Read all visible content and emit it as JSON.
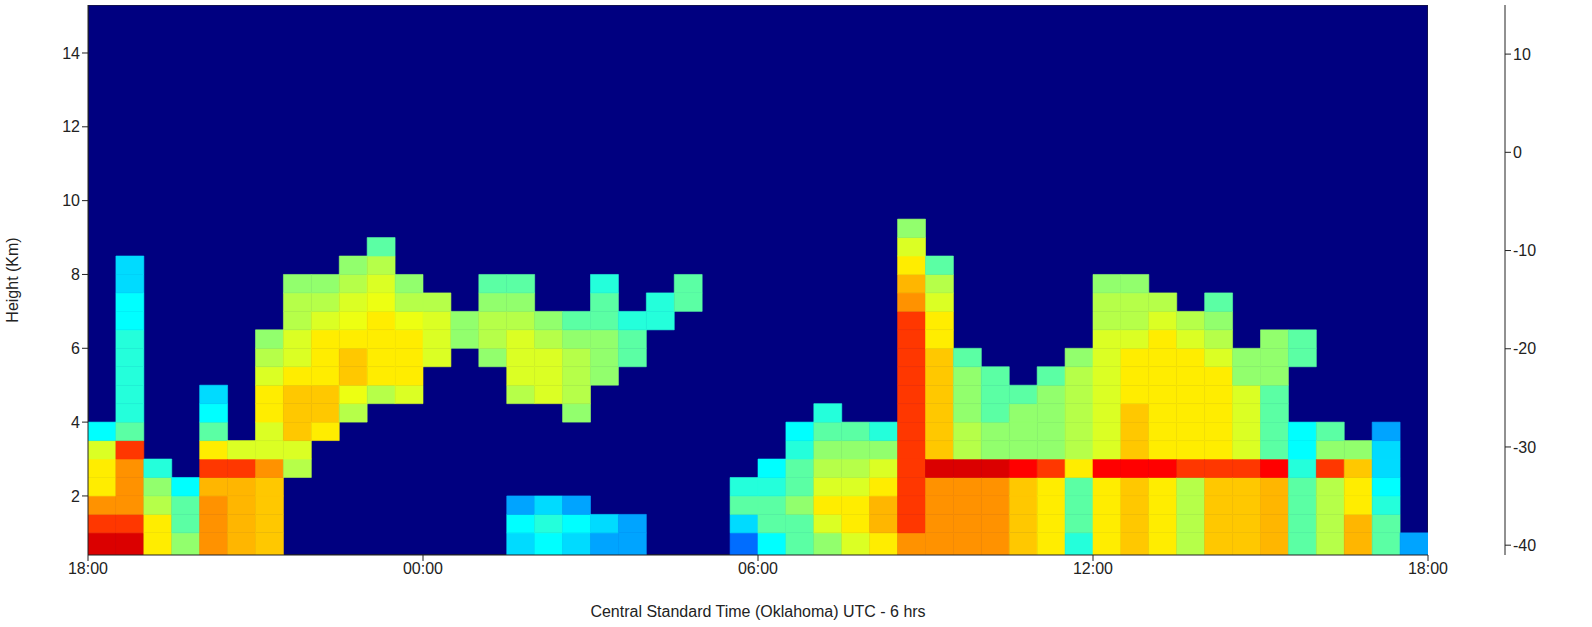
{
  "chart_data": {
    "type": "heatmap",
    "x_label": "Central Standard Time (Oklahoma)  UTC - 6 hrs",
    "y_label": "Height (Km)",
    "xlim": [
      0,
      24
    ],
    "xticks": [
      {
        "value": 0,
        "label": "18:00"
      },
      {
        "value": 6,
        "label": "00:00"
      },
      {
        "value": 12,
        "label": "06:00"
      },
      {
        "value": 18,
        "label": "12:00"
      },
      {
        "value": 24,
        "label": "18:00"
      }
    ],
    "ylim": [
      0.4,
      15.3
    ],
    "yticks": [
      2,
      4,
      6,
      8,
      10,
      12,
      14
    ],
    "heatmap": {
      "x_edges": [
        0,
        0.5,
        1,
        1.5,
        2,
        2.5,
        3,
        3.5,
        4,
        4.5,
        5,
        5.5,
        6,
        6.5,
        7,
        7.5,
        8,
        8.5,
        9,
        9.5,
        10,
        10.5,
        11,
        11.5,
        12,
        12.5,
        13,
        13.5,
        14,
        14.5,
        15,
        15.5,
        16,
        16.5,
        17,
        17.5,
        18,
        18.5,
        19,
        19.5,
        20,
        20.5,
        21,
        21.5,
        22,
        22.5,
        23,
        23.5,
        24
      ],
      "y_edges": [
        0.4,
        1,
        1.5,
        2,
        2.5,
        3,
        3.5,
        4,
        4.5,
        5,
        5.5,
        6,
        6.5,
        7,
        7.5,
        8,
        8.5,
        9,
        9.5
      ],
      "values": [
        [
          10,
          5,
          0,
          -5,
          -5,
          -8,
          -20,
          null,
          null,
          null,
          null,
          null,
          null,
          null,
          null,
          null,
          null,
          null
        ],
        [
          10,
          5,
          0,
          0,
          0,
          5,
          -15,
          -18,
          -18,
          -18,
          -18,
          -18,
          -20,
          -20,
          -22,
          -22,
          null,
          null
        ],
        [
          -5,
          -5,
          -10,
          -12,
          -18,
          null,
          null,
          null,
          null,
          null,
          null,
          null,
          null,
          null,
          null,
          null,
          null,
          null
        ],
        [
          -12,
          -15,
          -15,
          -20,
          null,
          null,
          null,
          null,
          null,
          null,
          null,
          null,
          null,
          null,
          null,
          null,
          null,
          null
        ],
        [
          0,
          0,
          0,
          -2,
          5,
          -5,
          -15,
          -20,
          -22,
          null,
          null,
          null,
          null,
          null,
          null,
          null,
          null,
          null
        ],
        [
          -2,
          -2,
          -2,
          -2,
          5,
          -8,
          null,
          null,
          null,
          null,
          null,
          null,
          null,
          null,
          null,
          null,
          null,
          null
        ],
        [
          -3,
          -3,
          -3,
          -3,
          0,
          -8,
          -8,
          -5,
          -5,
          -8,
          -10,
          -12,
          null,
          null,
          null,
          null,
          null,
          null
        ],
        [
          null,
          null,
          null,
          null,
          -10,
          -8,
          -3,
          -3,
          -3,
          -5,
          -8,
          -8,
          -10,
          -10,
          -12,
          null,
          null,
          null
        ],
        [
          null,
          null,
          null,
          null,
          null,
          null,
          -5,
          -3,
          -3,
          -5,
          -5,
          -5,
          -8,
          -10,
          -12,
          null,
          null,
          null
        ],
        [
          null,
          null,
          null,
          null,
          null,
          null,
          null,
          -10,
          -7,
          -3,
          -3,
          -5,
          -7,
          -8,
          -10,
          -12,
          null,
          null
        ],
        [
          null,
          null,
          null,
          null,
          null,
          null,
          null,
          null,
          -10,
          -5,
          -5,
          -5,
          -5,
          -7,
          -8,
          -10,
          -15,
          null
        ],
        [
          null,
          null,
          null,
          null,
          null,
          null,
          null,
          null,
          -8,
          -5,
          -5,
          -5,
          -7,
          -10,
          -12,
          null,
          null,
          null
        ],
        [
          null,
          null,
          null,
          null,
          null,
          null,
          null,
          null,
          null,
          null,
          -8,
          -8,
          -8,
          -10,
          null,
          null,
          null,
          null
        ],
        [
          null,
          null,
          null,
          null,
          null,
          null,
          null,
          null,
          null,
          null,
          null,
          -12,
          -12,
          null,
          null,
          null,
          null,
          null
        ],
        [
          null,
          null,
          null,
          null,
          null,
          null,
          null,
          null,
          null,
          null,
          -12,
          -10,
          -10,
          -12,
          -15,
          null,
          null,
          null
        ],
        [
          -22,
          -20,
          -25,
          null,
          null,
          null,
          null,
          null,
          -10,
          -8,
          -8,
          -8,
          -10,
          -12,
          -15,
          null,
          null,
          null
        ],
        [
          -20,
          -18,
          -22,
          null,
          null,
          null,
          null,
          null,
          -8,
          -8,
          -8,
          -10,
          -12,
          null,
          null,
          null,
          null,
          null
        ],
        [
          -22,
          -20,
          -25,
          null,
          null,
          null,
          null,
          -12,
          -10,
          -10,
          -10,
          -12,
          -15,
          null,
          null,
          null,
          null,
          null
        ],
        [
          -25,
          -22,
          null,
          null,
          null,
          null,
          null,
          null,
          null,
          -12,
          -12,
          -12,
          -15,
          -15,
          -18,
          null,
          null,
          null
        ],
        [
          -25,
          -25,
          null,
          null,
          null,
          null,
          null,
          null,
          null,
          null,
          -15,
          -15,
          -18,
          null,
          null,
          null,
          null,
          null
        ],
        [
          null,
          null,
          null,
          null,
          null,
          null,
          null,
          null,
          null,
          null,
          null,
          null,
          -18,
          -18,
          null,
          null,
          null,
          null
        ],
        [
          null,
          null,
          null,
          null,
          null,
          null,
          null,
          null,
          null,
          null,
          null,
          null,
          null,
          -15,
          -15,
          null,
          null,
          null
        ],
        [
          null,
          null,
          null,
          null,
          null,
          null,
          null,
          null,
          null,
          null,
          null,
          null,
          null,
          null,
          null,
          null,
          null,
          null
        ],
        [
          -28,
          -22,
          -15,
          -18,
          null,
          null,
          null,
          null,
          null,
          null,
          null,
          null,
          null,
          null,
          null,
          null,
          null,
          null
        ],
        [
          -20,
          -15,
          -15,
          -18,
          -20,
          null,
          null,
          null,
          null,
          null,
          null,
          null,
          null,
          null,
          null,
          null,
          null,
          null
        ],
        [
          -15,
          -15,
          -12,
          -15,
          -15,
          -18,
          -20,
          null,
          null,
          null,
          null,
          null,
          null,
          null,
          null,
          null,
          null,
          null
        ],
        [
          -12,
          -8,
          -5,
          -8,
          -10,
          -12,
          -15,
          -18,
          null,
          null,
          null,
          null,
          null,
          null,
          null,
          null,
          null,
          null
        ],
        [
          -8,
          -5,
          -5,
          -8,
          -10,
          -12,
          -15,
          null,
          null,
          null,
          null,
          null,
          null,
          null,
          null,
          null,
          null,
          null
        ],
        [
          -5,
          -2,
          -2,
          -5,
          -8,
          -12,
          -18,
          null,
          null,
          null,
          null,
          null,
          null,
          null,
          null,
          null,
          null,
          null
        ],
        [
          0,
          5,
          5,
          5,
          5,
          5,
          5,
          5,
          5,
          5,
          5,
          5,
          5,
          0,
          -2,
          -5,
          -8,
          -12
        ],
        [
          0,
          0,
          0,
          0,
          10,
          -3,
          -3,
          -3,
          -3,
          -3,
          -3,
          -5,
          -5,
          -8,
          -10,
          -15,
          null,
          null
        ],
        [
          0,
          0,
          0,
          0,
          10,
          -10,
          -10,
          -12,
          -12,
          -12,
          -15,
          null,
          null,
          null,
          null,
          null,
          null,
          null
        ],
        [
          0,
          0,
          0,
          0,
          10,
          -12,
          -12,
          -15,
          -15,
          -15,
          null,
          null,
          null,
          null,
          null,
          null,
          null,
          null
        ],
        [
          -3,
          -3,
          -3,
          -3,
          8,
          -12,
          -12,
          -12,
          -15,
          null,
          null,
          null,
          null,
          null,
          null,
          null,
          null,
          null
        ],
        [
          -5,
          -5,
          -5,
          -5,
          5,
          -12,
          -12,
          -12,
          -12,
          -15,
          null,
          null,
          null,
          null,
          null,
          null,
          null,
          null
        ],
        [
          -18,
          -15,
          -15,
          -15,
          -5,
          -10,
          -10,
          -10,
          -10,
          -10,
          -12,
          null,
          null,
          null,
          null,
          null,
          null,
          null
        ],
        [
          -5,
          -5,
          -5,
          -5,
          8,
          -8,
          -8,
          -8,
          -8,
          -8,
          -8,
          -8,
          -10,
          -10,
          -12,
          null,
          null,
          null
        ],
        [
          -3,
          -3,
          -3,
          -3,
          8,
          -3,
          -3,
          -3,
          -5,
          -5,
          -5,
          -8,
          -10,
          -10,
          -12,
          null,
          null,
          null
        ],
        [
          -5,
          -5,
          -5,
          -5,
          8,
          -5,
          -5,
          -5,
          -5,
          -5,
          -5,
          -5,
          -8,
          -10,
          null,
          null,
          null,
          null
        ],
        [
          -10,
          -10,
          -10,
          -10,
          5,
          -5,
          -5,
          -5,
          -5,
          -5,
          -5,
          -8,
          -10,
          null,
          null,
          null,
          null,
          null
        ],
        [
          -3,
          -3,
          -3,
          -3,
          5,
          -5,
          -5,
          -5,
          -5,
          -5,
          -8,
          -10,
          -12,
          -15,
          null,
          null,
          null,
          null
        ],
        [
          -3,
          -3,
          -3,
          -3,
          5,
          -8,
          -8,
          -8,
          -8,
          -12,
          -12,
          null,
          null,
          null,
          null,
          null,
          null,
          null
        ],
        [
          -2,
          -2,
          -2,
          -2,
          8,
          -15,
          -15,
          -15,
          -15,
          -12,
          -12,
          -12,
          null,
          null,
          null,
          null,
          null,
          null
        ],
        [
          -15,
          -15,
          -15,
          -15,
          -18,
          -20,
          -20,
          null,
          null,
          null,
          -15,
          -15,
          null,
          null,
          null,
          null,
          null,
          null
        ],
        [
          -10,
          -10,
          -10,
          -10,
          5,
          -12,
          -15,
          null,
          null,
          null,
          null,
          null,
          null,
          null,
          null,
          null,
          null,
          null
        ],
        [
          -2,
          -2,
          -5,
          -5,
          -3,
          -12,
          null,
          null,
          null,
          null,
          null,
          null,
          null,
          null,
          null,
          null,
          null,
          null
        ],
        [
          -15,
          -15,
          -18,
          -20,
          -22,
          -22,
          -25,
          null,
          null,
          null,
          null,
          null,
          null,
          null,
          null,
          null,
          null,
          null
        ],
        [
          -25,
          null,
          null,
          null,
          null,
          null,
          null,
          null,
          null,
          null,
          null,
          null,
          null,
          null,
          null,
          null,
          null,
          null
        ]
      ]
    },
    "colorbar": {
      "lim": [
        -41,
        15
      ],
      "ticks": [
        -40,
        -30,
        -20,
        -10,
        0,
        10
      ]
    }
  }
}
